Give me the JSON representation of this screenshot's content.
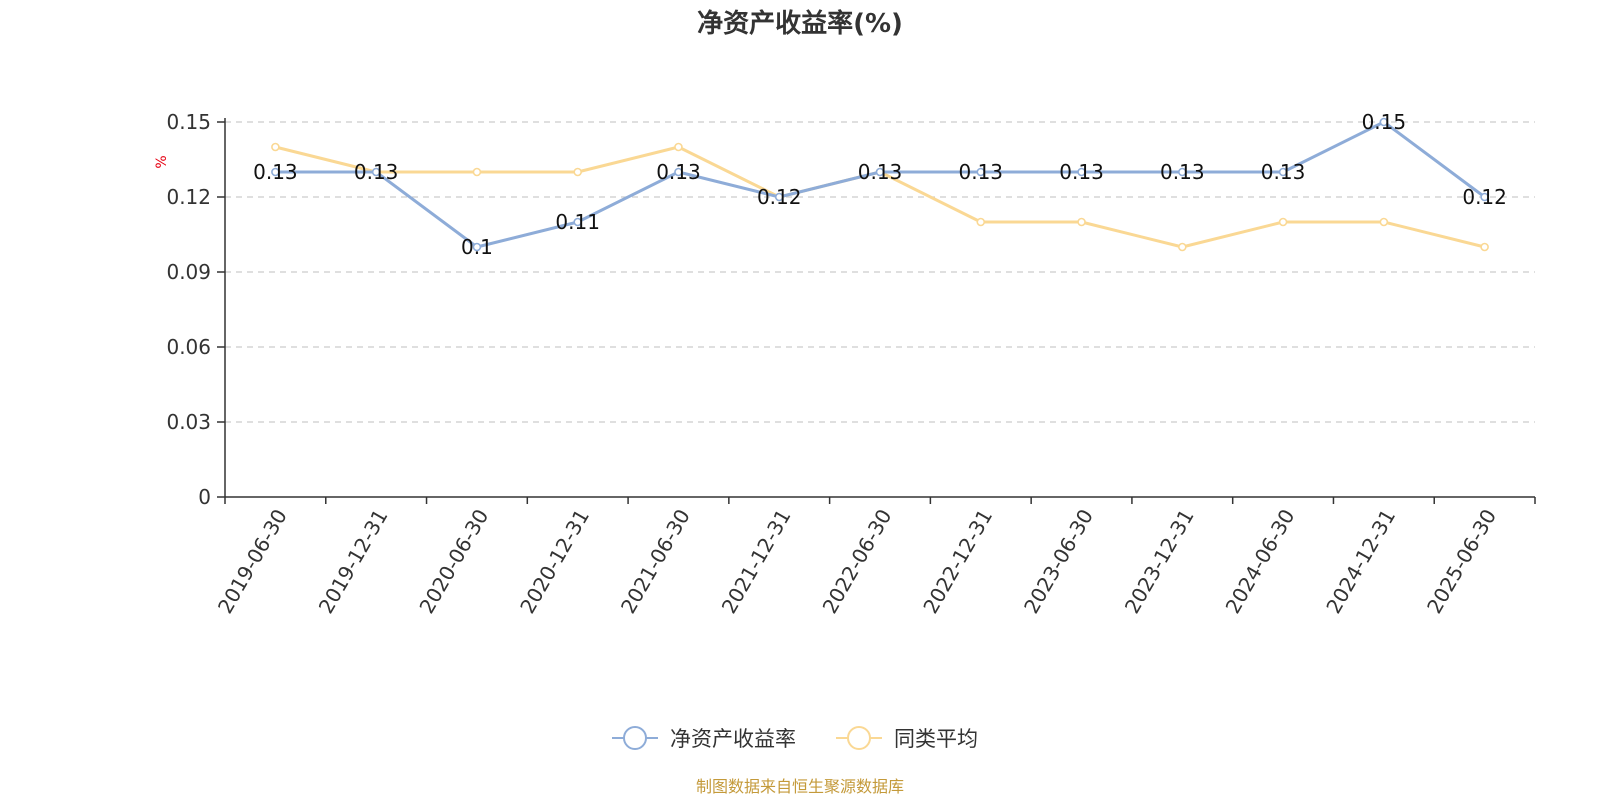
{
  "chart_data": {
    "type": "line",
    "title": "净资产收益率(%)",
    "ylabel": "%",
    "xlabel": "",
    "ylim": [
      0,
      0.15
    ],
    "yticks": [
      "0",
      "0.03",
      "0.06",
      "0.09",
      "0.12",
      "0.15"
    ],
    "categories": [
      "2019-06-30",
      "2019-12-31",
      "2020-06-30",
      "2020-12-31",
      "2021-06-30",
      "2021-12-31",
      "2022-06-30",
      "2022-12-31",
      "2023-06-30",
      "2023-12-31",
      "2024-06-30",
      "2024-12-31",
      "2025-06-30"
    ],
    "grid": "horizontal-dashed",
    "legend_position": "bottom-center",
    "series": [
      {
        "name": "净资产收益率",
        "color": "#8eacd8",
        "values": [
          0.13,
          0.13,
          0.1,
          0.11,
          0.13,
          0.12,
          0.13,
          0.13,
          0.13,
          0.13,
          0.13,
          0.15,
          0.12
        ],
        "labels": [
          "0.13",
          "0.13",
          "0.1",
          "0.11",
          "0.13",
          "0.12",
          "0.13",
          "0.13",
          "0.13",
          "0.13",
          "0.13",
          "0.15",
          "0.12"
        ]
      },
      {
        "name": "同类平均",
        "color": "#fad894",
        "values": [
          0.14,
          0.13,
          0.13,
          0.13,
          0.14,
          0.12,
          0.13,
          0.11,
          0.11,
          0.1,
          0.11,
          0.11,
          0.1
        ]
      }
    ]
  },
  "source": {
    "text": "制图数据来自恒生聚源数据库",
    "color": "#c49a3a"
  }
}
